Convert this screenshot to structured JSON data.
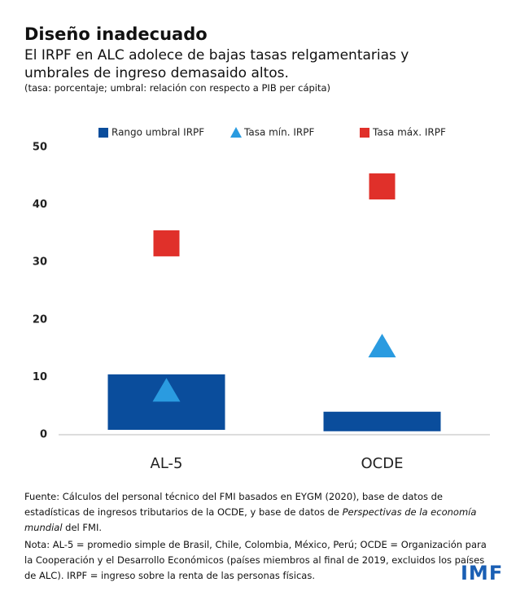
{
  "header": {
    "title": "Diseño inadecuado",
    "subtitle": "El IRPF en ALC adolece de bajas tasas relgamentarias y umbrales de ingreso demasaido altos.",
    "note": "(tasa: porcentaje; umbral: relación con respecto a PIB per cápita)"
  },
  "chart_data": {
    "type": "range-marker",
    "categories": [
      "AL-5",
      "OCDE"
    ],
    "series": [
      {
        "name": "Rango umbral IRPF",
        "color": "#0a4d9c",
        "marker": "range",
        "low": [
          0.85,
          0.6
        ],
        "high": [
          10.5,
          4.0
        ]
      },
      {
        "name": "Tasa mín. IRPF",
        "color": "#2a9be0",
        "marker": "triangle",
        "values": [
          7.6,
          15.3
        ]
      },
      {
        "name": "Tasa máx. IRPF",
        "color": "#e0302a",
        "marker": "square",
        "values": [
          33.3,
          43.2
        ]
      }
    ],
    "ylim": [
      0,
      50
    ],
    "yticks": [
      0,
      10,
      20,
      30,
      40,
      50
    ],
    "grid": false,
    "legend": "top"
  },
  "footer": {
    "source": [
      "Fuente: Cálculos del personal técnico del FMI basados en EYGM (2020), base de datos de estadísticas de ingresos tributarios de la OCDE, y base de datos de ",
      "Perspectivas de la economía mundial",
      " del FMI."
    ],
    "note": "Nota: AL-5 = promedio simple de Brasil, Chile, Colombia, México, Perú; OCDE = Organización para la Cooperación y el Desarrollo Económicos (países miembros al final de 2019, excluidos los países de ALC). IRPF = ingreso sobre la renta de las personas físicas.",
    "logo": "IMF"
  }
}
